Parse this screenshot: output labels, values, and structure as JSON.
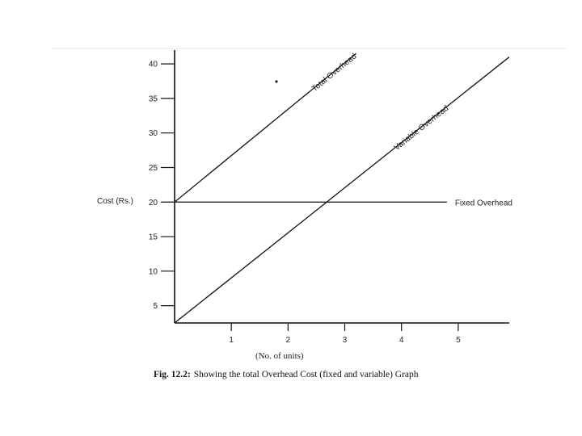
{
  "chart_data": {
    "type": "line",
    "ylabel": "Cost (Rs.)",
    "xlabel": "(No. of units)",
    "caption_prefix": "Fig. 12.2:",
    "caption_text": "Showing the total Overhead Cost (fixed and variable) Graph",
    "x_ticks": [
      1,
      2,
      3,
      4,
      5
    ],
    "y_ticks": [
      5,
      10,
      15,
      20,
      25,
      30,
      35,
      40
    ],
    "x_tick_labels": [
      "1",
      "2",
      "3",
      "4",
      "5"
    ],
    "y_tick_labels": [
      "5",
      "10",
      "15",
      "20",
      "25",
      "30",
      "35",
      "40"
    ],
    "xlim": [
      0,
      5.9
    ],
    "ylim": [
      2.5,
      42
    ],
    "grid": false,
    "series": [
      {
        "name": "Total Overhead",
        "x": [
          0,
          3.2
        ],
        "y": [
          20,
          41.5
        ]
      },
      {
        "name": "Variable Overhead",
        "x": [
          0,
          5.9
        ],
        "y": [
          2.5,
          41
        ]
      },
      {
        "name": "Fixed Overhead",
        "x": [
          0,
          4.8
        ],
        "y": [
          20,
          20
        ]
      }
    ]
  }
}
